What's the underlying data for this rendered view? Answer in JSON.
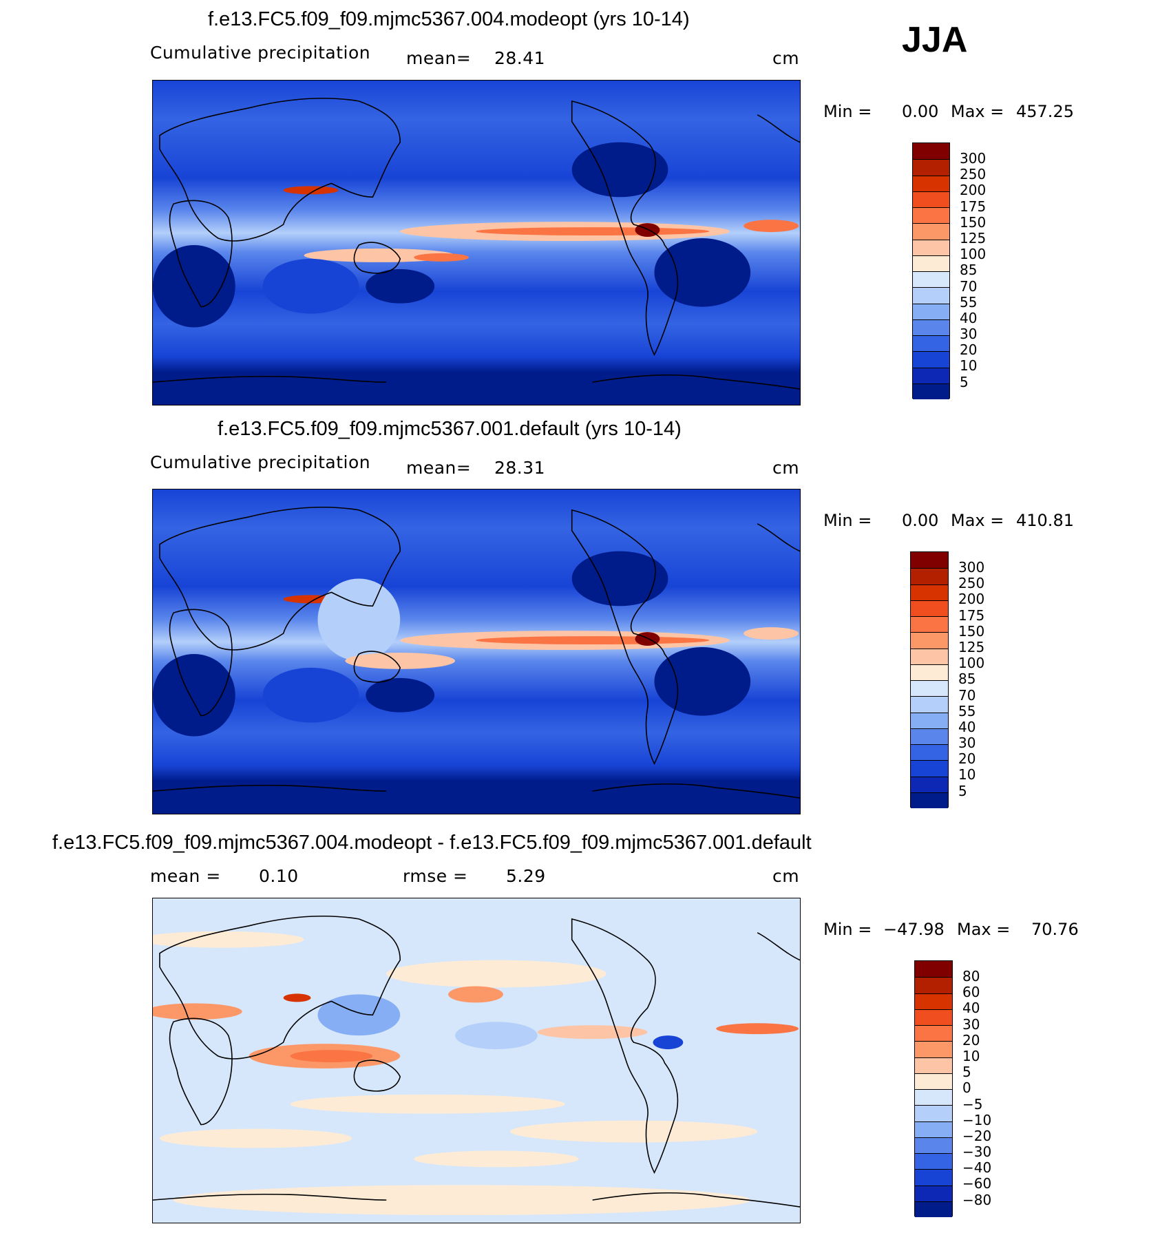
{
  "season": "JJA",
  "panels": [
    {
      "title": "f.e13.FC5.f09_f09.mjmc5367.004.modeopt (yrs 10-14)",
      "subtitle": "Cumulative precipitation",
      "mean_label": "mean=",
      "mean_value": "28.41",
      "unit": "cm",
      "min_label": "Min =",
      "min_value": "0.00",
      "max_label": "Max =",
      "max_value": "457.25",
      "colorbar_ticks": [
        "300",
        "250",
        "200",
        "175",
        "150",
        "125",
        "100",
        "85",
        "70",
        "55",
        "40",
        "30",
        "20",
        "10",
        "5"
      ]
    },
    {
      "title": "f.e13.FC5.f09_f09.mjmc5367.001.default (yrs 10-14)",
      "subtitle": "Cumulative precipitation",
      "mean_label": "mean=",
      "mean_value": "28.31",
      "unit": "cm",
      "min_label": "Min =",
      "min_value": "0.00",
      "max_label": "Max =",
      "max_value": "410.81",
      "colorbar_ticks": [
        "300",
        "250",
        "200",
        "175",
        "150",
        "125",
        "100",
        "85",
        "70",
        "55",
        "40",
        "30",
        "20",
        "10",
        "5"
      ]
    },
    {
      "title": "f.e13.FC5.f09_f09.mjmc5367.004.modeopt - f.e13.FC5.f09_f09.mjmc5367.001.default",
      "mean_label": "mean =",
      "mean_value": "0.10",
      "rmse_label": "rmse =",
      "rmse_value": "5.29",
      "unit": "cm",
      "min_label": "Min =",
      "min_value": "−47.98",
      "max_label": "Max =",
      "max_value": "70.76",
      "colorbar_ticks": [
        "80",
        "60",
        "40",
        "30",
        "20",
        "10",
        "5",
        "0",
        "−5",
        "−10",
        "−20",
        "−30",
        "−40",
        "−60",
        "−80"
      ]
    }
  ],
  "colors": {
    "precip_scale": [
      "#800000",
      "#b22000",
      "#d63300",
      "#f04e1e",
      "#fa7444",
      "#fc9868",
      "#fdc5a6",
      "#fdebd6",
      "#d6e7fb",
      "#b3cffa",
      "#86aef5",
      "#5a86ec",
      "#3464e3",
      "#1844d6",
      "#0c28b4",
      "#001b8a"
    ],
    "diff_scale": [
      "#800000",
      "#b22000",
      "#d63300",
      "#f04e1e",
      "#fa7444",
      "#fc9868",
      "#fdc5a6",
      "#fdebd6",
      "#d6e7fb",
      "#b3cffa",
      "#86aef5",
      "#5a86ec",
      "#3464e3",
      "#1844d6",
      "#0c28b4",
      "#001b8a"
    ]
  }
}
